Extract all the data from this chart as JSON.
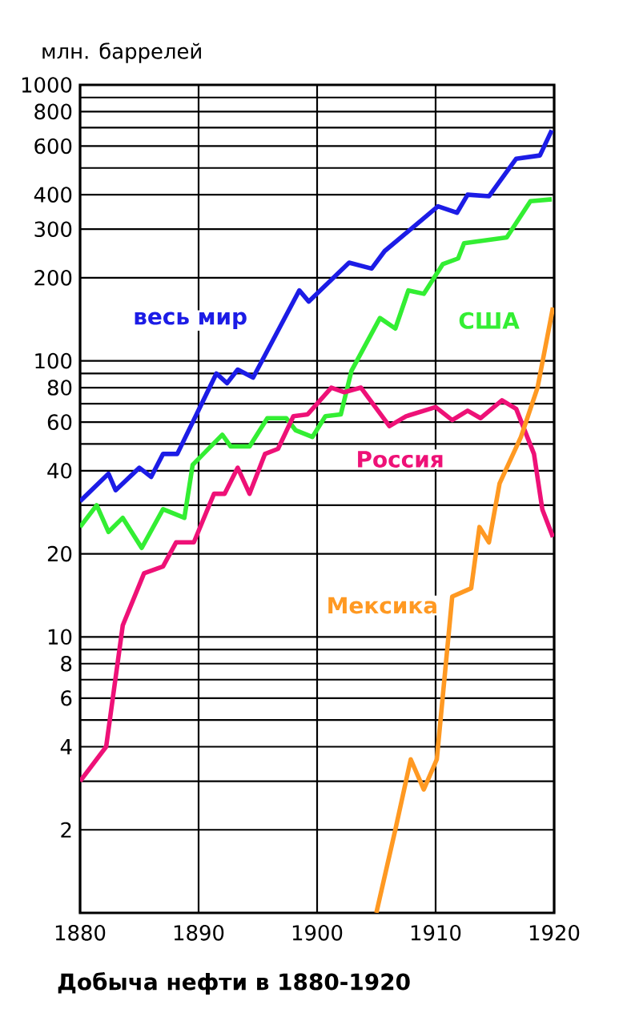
{
  "chart_data": {
    "type": "line",
    "title": "Добыча нефти в 1880-1920",
    "ylabel": "млн. баррелей",
    "xlim": [
      1880,
      1920
    ],
    "ylim": [
      1,
      1000
    ],
    "log": "y",
    "grid": true,
    "xticks": [
      1880,
      1890,
      1900,
      1910,
      1920
    ],
    "yticks": [
      1000,
      {
        "value": 900,
        "label": null
      },
      800,
      {
        "value": 700,
        "label": null
      },
      600,
      {
        "value": 500,
        "label": null
      },
      400,
      300,
      200,
      100,
      {
        "value": 90,
        "label": null
      },
      80,
      {
        "value": 70,
        "label": null
      },
      60,
      {
        "value": 50,
        "label": null
      },
      40,
      {
        "value": 30,
        "label": null
      },
      20,
      10,
      {
        "value": 9,
        "label": null
      },
      8,
      {
        "value": 7,
        "label": null
      },
      6,
      {
        "value": 5,
        "label": null
      },
      4,
      {
        "value": 3,
        "label": null
      },
      2
    ],
    "series": [
      {
        "name": "весь мир",
        "color": "#1c1ce6",
        "x": [
          1880,
          1882.4,
          1883,
          1885,
          1886,
          1887,
          1888.2,
          1891.5,
          1892.4,
          1893.3,
          1894.6,
          1896.5,
          1898.5,
          1899.3,
          1902.7,
          1904.6,
          1905.7,
          1910.2,
          1911.8,
          1912.7,
          1914.5,
          1916.8,
          1918.8,
          1919.8
        ],
        "values": [
          31,
          39,
          34,
          41,
          38,
          46,
          46,
          90,
          83,
          93,
          87,
          124,
          180,
          164,
          227,
          216,
          250,
          363,
          344,
          400,
          395,
          540,
          555,
          685
        ]
      },
      {
        "name": "США",
        "color": "#33ee33",
        "x": [
          1880,
          1881.4,
          1882.4,
          1883.6,
          1885.2,
          1887,
          1888.8,
          1889.5,
          1892,
          1892.7,
          1894.3,
          1895.8,
          1897.4,
          1898.2,
          1899.6,
          1900.7,
          1902,
          1902.9,
          1905.3,
          1906.6,
          1907.7,
          1909,
          1910.6,
          1911.9,
          1912.4,
          1916,
          1918,
          1919.8
        ],
        "values": [
          25,
          30,
          24,
          27,
          21,
          29,
          27,
          42,
          54,
          49,
          49,
          62,
          62,
          56,
          53,
          63,
          64,
          92,
          143,
          131,
          180,
          175,
          224,
          235,
          267,
          280,
          379,
          385
        ]
      },
      {
        "name": "Россия",
        "color": "#ee1177",
        "x": [
          1880,
          1882.2,
          1883.6,
          1885.4,
          1887,
          1888.1,
          1889.6,
          1891.3,
          1892.2,
          1893.3,
          1894.3,
          1895.6,
          1896.7,
          1898,
          1899.2,
          1901.2,
          1902.3,
          1903.7,
          1906.1,
          1907.5,
          1910,
          1911.4,
          1912.7,
          1913.8,
          1915.6,
          1916.8,
          1918.3,
          1919,
          1919.9
        ],
        "values": [
          3,
          4,
          11,
          17,
          18,
          22,
          22,
          33,
          33,
          41,
          33,
          46,
          48,
          63,
          64,
          80,
          77,
          80,
          58,
          63,
          68,
          61,
          66,
          62,
          72,
          67,
          46,
          29,
          23
        ]
      },
      {
        "name": "Мексика",
        "color": "#ff9922",
        "x": [
          1905,
          1906.6,
          1907.9,
          1909,
          1910.1,
          1911.4,
          1913,
          1913.7,
          1914.5,
          1915.4,
          1917.2,
          1918.6,
          1919.9
        ],
        "values": [
          1,
          2,
          3.6,
          2.8,
          3.6,
          14,
          15,
          25,
          22,
          36,
          53,
          80,
          156
        ]
      }
    ]
  }
}
